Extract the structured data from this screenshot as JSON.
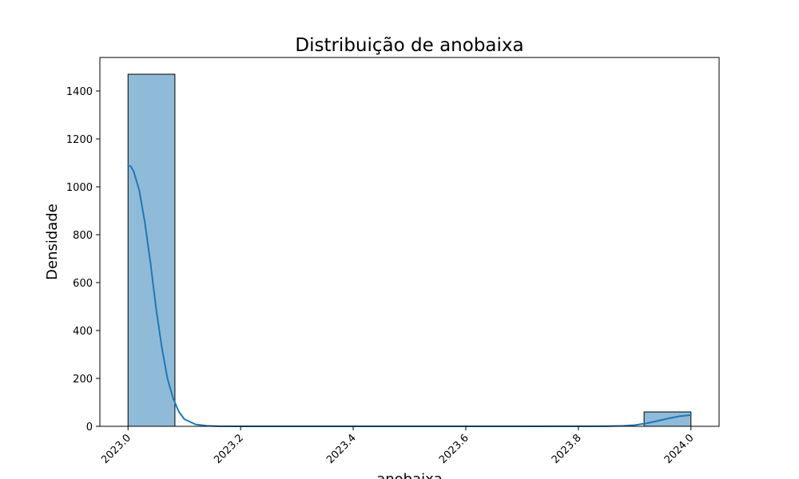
{
  "chart_data": {
    "type": "bar",
    "title": "Distribuição de anobaixa",
    "xlabel": "anobaixa",
    "ylabel": "Densidade",
    "xlim": [
      2022.95,
      2024.05
    ],
    "ylim": [
      0,
      1540
    ],
    "x_ticks": [
      2023.0,
      2023.2,
      2023.4,
      2023.6,
      2023.8,
      2024.0
    ],
    "x_tick_labels": [
      "2023.0",
      "2023.2",
      "2023.4",
      "2023.6",
      "2023.8",
      "2024.0"
    ],
    "y_ticks": [
      0,
      200,
      400,
      600,
      800,
      1000,
      1200,
      1400
    ],
    "y_tick_labels": [
      "0",
      "200",
      "400",
      "600",
      "800",
      "1000",
      "1200",
      "1400"
    ],
    "bins": [
      {
        "x0": 2023.0,
        "x1": 2023.0833,
        "value": 1470
      },
      {
        "x0": 2023.9167,
        "x1": 2024.0,
        "value": 60
      }
    ],
    "kde": {
      "x": [
        2023.0,
        2023.005,
        2023.01,
        2023.02,
        2023.03,
        2023.04,
        2023.05,
        2023.06,
        2023.07,
        2023.08,
        2023.09,
        2023.1,
        2023.12,
        2023.14,
        2023.16,
        2023.2,
        2023.3,
        2023.5,
        2023.7,
        2023.85,
        2023.88,
        2023.9,
        2023.92,
        2023.94,
        2023.96,
        2023.98,
        2024.0
      ],
      "y": [
        1090,
        1085,
        1065,
        985,
        850,
        680,
        490,
        330,
        200,
        118,
        62,
        30,
        8,
        2,
        0.5,
        0,
        0,
        0,
        0,
        0.5,
        2,
        5,
        12,
        22,
        33,
        42,
        47
      ]
    },
    "bar_color": "#8fbbd9",
    "bar_edge_color": "#000000",
    "line_color": "#1f77b4",
    "grid": false,
    "legend": "none"
  }
}
